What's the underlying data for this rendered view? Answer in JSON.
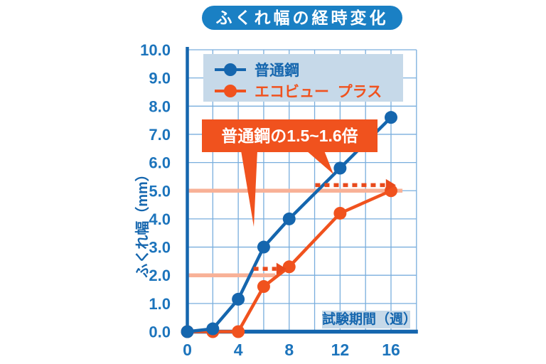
{
  "colors": {
    "title_bg": "#1a80c4",
    "axis_blue": "#1566ae",
    "tick_text": "#1c74bc",
    "grid": "#79aedd",
    "panel_bg": "#c6d9e9",
    "background": "#ffffff",
    "white": "#ffffff"
  },
  "chart_data": {
    "type": "line",
    "title": "ふくれ幅の経時変化",
    "xlabel": "試験期間（週）",
    "ylabel": "ふくれ幅（mm）",
    "xlim": [
      0,
      18
    ],
    "ylim": [
      0,
      10
    ],
    "xticks": {
      "values": [
        0,
        4,
        8,
        12,
        16
      ],
      "labels": [
        "0",
        "4",
        "8",
        "12",
        "16"
      ]
    },
    "yticks": {
      "values": [
        0,
        1,
        2,
        3,
        4,
        5,
        6,
        7,
        8,
        9,
        10
      ],
      "labels": [
        "0.0",
        "1.0",
        "2.0",
        "3.0",
        "4.0",
        "5.0",
        "6.0",
        "7.0",
        "8.0",
        "9.0",
        "10.0"
      ]
    },
    "grid": {
      "x_interval": 2,
      "y_interval": 1,
      "on": true
    },
    "legend_position": "top-inside",
    "series": [
      {
        "name": "普通鋼",
        "color": "#1566ae",
        "x": [
          0,
          2,
          4,
          6,
          8,
          12,
          16
        ],
        "y": [
          0,
          0.1,
          1.15,
          3.0,
          4.0,
          5.8,
          7.6
        ]
      },
      {
        "name": "エコビュー  プラス",
        "color": "#f0521e",
        "x": [
          0,
          2,
          4,
          6,
          8,
          12,
          16
        ],
        "y": [
          0,
          0,
          0,
          1.6,
          2.3,
          4.2,
          5.0
        ]
      }
    ],
    "annotations": {
      "callout_text": "普通鋼の1.5~1.6倍",
      "callout_color": "#f0521e",
      "reference_lines": [
        {
          "y": 2.0,
          "x_from": 0,
          "x_to": 6.9,
          "color": "#f8b197"
        },
        {
          "y": 5.0,
          "x_from": 0,
          "x_to": 16.9,
          "color": "#f8b197"
        }
      ],
      "arrows": [
        {
          "y": 2.23,
          "x_from": 5.2,
          "x_to": 7.0,
          "color": "#e84a1c"
        },
        {
          "y": 5.2,
          "x_from": 10.05,
          "x_to": 15.6,
          "color": "#e84a1c"
        }
      ]
    }
  }
}
